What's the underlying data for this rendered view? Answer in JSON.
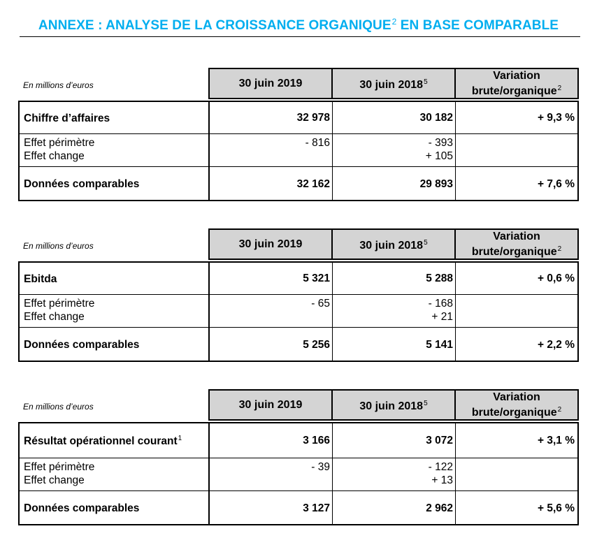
{
  "title": {
    "text": "ANNEXE : ANALYSE DE LA CROISSANCE ORGANIQUE",
    "sup": "2",
    "tail": " EN BASE COMPARABLE"
  },
  "header": {
    "unit": "En millions d’euros",
    "col1": "30 juin 2019",
    "col2": "30 juin 2018",
    "col2_sup": "5",
    "col3_line1": "Variation",
    "col3_line2": "brute/organique",
    "col3_sup": "2"
  },
  "tables": [
    {
      "main": {
        "label": "Chiffre d’affaires",
        "sup": "",
        "v2019": "32 978",
        "v2018": "30 182",
        "variation": "+ 9,3 %"
      },
      "effects": {
        "label1": "Effet périmètre",
        "label2": "Effet change",
        "v2019_1": "- 816",
        "v2019_2": "",
        "v2018_1": "- 393",
        "v2018_2": "+ 105"
      },
      "comparable": {
        "label": "Données comparables",
        "v2019": "32 162",
        "v2018": "29 893",
        "variation": "+ 7,6 %"
      }
    },
    {
      "main": {
        "label": "Ebitda",
        "sup": "",
        "v2019": "5 321",
        "v2018": "5 288",
        "variation": "+ 0,6 %"
      },
      "effects": {
        "label1": "Effet périmètre",
        "label2": "Effet change",
        "v2019_1": "- 65",
        "v2019_2": "",
        "v2018_1": "- 168",
        "v2018_2": "+ 21"
      },
      "comparable": {
        "label": "Données comparables",
        "v2019": "5 256",
        "v2018": "5 141",
        "variation": "+ 2,2 %"
      }
    },
    {
      "main": {
        "label": "Résultat opérationnel courant",
        "sup": "1",
        "v2019": "3 166",
        "v2018": "3 072",
        "variation": "+ 3,1 %"
      },
      "effects": {
        "label1": "Effet périmètre",
        "label2": "Effet change",
        "v2019_1": "- 39",
        "v2019_2": "",
        "v2018_1": "- 122",
        "v2018_2": "+ 13"
      },
      "comparable": {
        "label": "Données comparables",
        "v2019": "3 127",
        "v2018": "2 962",
        "variation": "+ 5,6 %"
      }
    }
  ]
}
